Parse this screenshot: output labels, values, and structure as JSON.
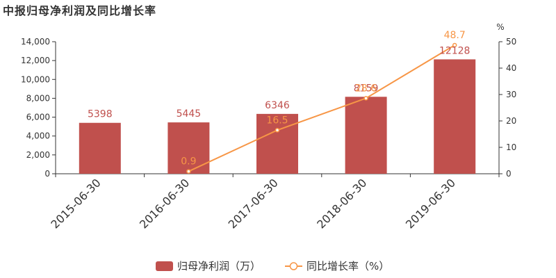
{
  "chart_data": {
    "type": "bar",
    "title": "中报归母净利润及同比增长率",
    "categories": [
      "2015-06-30",
      "2016-06-30",
      "2017-06-30",
      "2018-06-30",
      "2019-06-30"
    ],
    "series": [
      {
        "name": "归母净利润（万）",
        "type": "bar",
        "axis": "left",
        "color": "#c0504d",
        "values": [
          5398,
          5445,
          6346,
          8159,
          12128
        ],
        "labels": [
          "5398",
          "5445",
          "6346",
          "8159",
          "12128"
        ]
      },
      {
        "name": "同比增长率（%）",
        "type": "line",
        "axis": "right",
        "color": "#f79646",
        "values": [
          null,
          0.9,
          16.5,
          28.6,
          48.7
        ],
        "labels": [
          "",
          "0.9",
          "16.5",
          "28.6",
          "48.7"
        ]
      }
    ],
    "y_left": {
      "ylim": [
        0,
        14000
      ],
      "ticks": [
        0,
        2000,
        4000,
        6000,
        8000,
        10000,
        12000,
        14000
      ],
      "tick_labels": [
        "0",
        "2,000",
        "4,000",
        "6,000",
        "8,000",
        "10,000",
        "12,000",
        "14,000"
      ]
    },
    "y_right": {
      "label": "%",
      "ylim": [
        0,
        50
      ],
      "ticks": [
        0,
        10,
        20,
        30,
        40,
        50
      ],
      "tick_labels": [
        "0",
        "10",
        "20",
        "30",
        "40",
        "50"
      ]
    },
    "grid": false,
    "legend": "bottom-center"
  }
}
